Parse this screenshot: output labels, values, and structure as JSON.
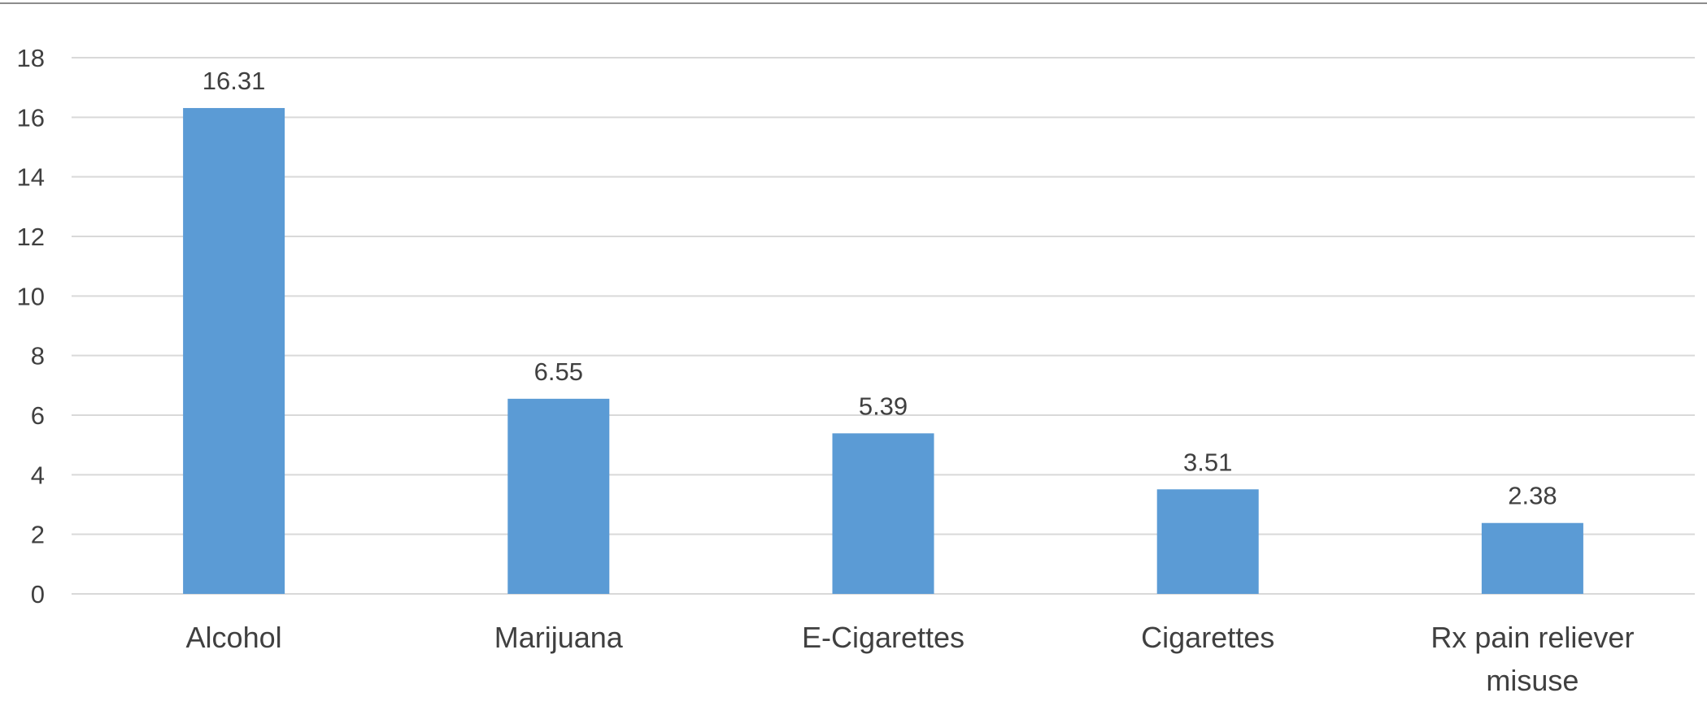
{
  "chart_data": {
    "type": "bar",
    "title": "",
    "xlabel": "",
    "ylabel": "",
    "categories": [
      "Alcohol",
      "Marijuana",
      "E-Cigarettes",
      "Cigarettes",
      "Rx pain reliever misuse"
    ],
    "category_label_lines": [
      [
        "Alcohol"
      ],
      [
        "Marijuana"
      ],
      [
        "E-Cigarettes"
      ],
      [
        "Cigarettes"
      ],
      [
        "Rx pain reliever",
        "misuse"
      ]
    ],
    "values": [
      16.31,
      6.55,
      5.39,
      3.51,
      2.38
    ],
    "value_labels": [
      "16.31",
      "6.55",
      "5.39",
      "3.51",
      "2.38"
    ],
    "ylim": [
      0,
      18
    ],
    "yticks": [
      0,
      2,
      4,
      6,
      8,
      10,
      12,
      14,
      16,
      18
    ],
    "ytick_labels": [
      "0",
      "2",
      "4",
      "6",
      "8",
      "10",
      "12",
      "14",
      "16",
      "18"
    ],
    "grid": true,
    "legend": false,
    "colors": {
      "bar": "#5b9bd5",
      "grid": "#d9d9d9",
      "text": "#404040"
    }
  }
}
